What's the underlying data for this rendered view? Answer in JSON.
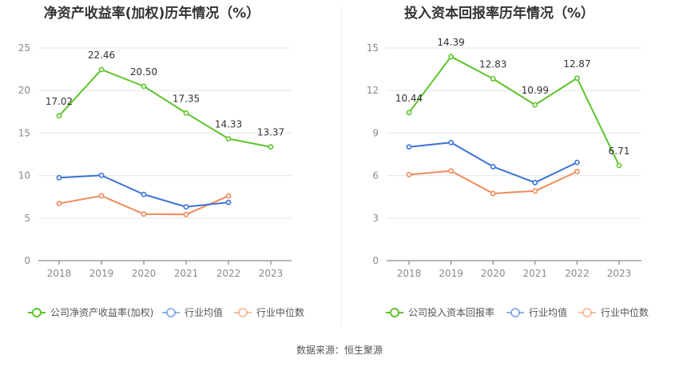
{
  "source": "数据来源：恒生聚源",
  "chart_data": [
    {
      "type": "line",
      "title": "净资产收益率(加权)历年情况（%）",
      "categories": [
        "2018",
        "2019",
        "2020",
        "2021",
        "2022",
        "2023"
      ],
      "ylim": [
        0,
        25
      ],
      "yticks": [
        0,
        5,
        10,
        15,
        20,
        25
      ],
      "ytick_labels": [
        "0",
        "5",
        "10",
        "15",
        "20",
        "25"
      ],
      "grid": true,
      "legend_position": "bottom-left",
      "series": [
        {
          "name": "公司净资产收益率(加权)",
          "color": "#5cc42a",
          "values": [
            17.02,
            22.46,
            20.5,
            17.35,
            14.33,
            13.37
          ],
          "labels": [
            "17.02",
            "22.46",
            "20.50",
            "17.35",
            "14.33",
            "13.37"
          ]
        },
        {
          "name": "行业均值",
          "color": "#3b73d6",
          "values": [
            9.75,
            10.03,
            7.79,
            6.32,
            6.85,
            null
          ]
        },
        {
          "name": "行业中位数",
          "color": "#f08a5a",
          "values": [
            6.72,
            7.62,
            5.48,
            5.43,
            7.61,
            null
          ]
        }
      ]
    },
    {
      "type": "line",
      "title": "投入资本回报率历年情况（%）",
      "categories": [
        "2018",
        "2019",
        "2020",
        "2021",
        "2022",
        "2023"
      ],
      "ylim": [
        0,
        15
      ],
      "yticks": [
        0,
        3,
        6,
        9,
        12,
        15
      ],
      "ytick_labels": [
        "0",
        "3",
        "6",
        "9",
        "12",
        "15"
      ],
      "grid": true,
      "legend_position": "bottom-left",
      "series": [
        {
          "name": "公司投入资本回报率",
          "color": "#5cc42a",
          "values": [
            10.44,
            14.39,
            12.83,
            10.99,
            12.87,
            6.71
          ],
          "labels": [
            "10.44",
            "14.39",
            "12.83",
            "10.99",
            "12.87",
            "6.71"
          ]
        },
        {
          "name": "行业均值",
          "color": "#3b73d6",
          "values": [
            8.02,
            8.33,
            6.63,
            5.51,
            6.93,
            null
          ]
        },
        {
          "name": "行业中位数",
          "color": "#f08a5a",
          "values": [
            6.07,
            6.33,
            4.74,
            4.91,
            6.28,
            null
          ]
        }
      ]
    }
  ]
}
